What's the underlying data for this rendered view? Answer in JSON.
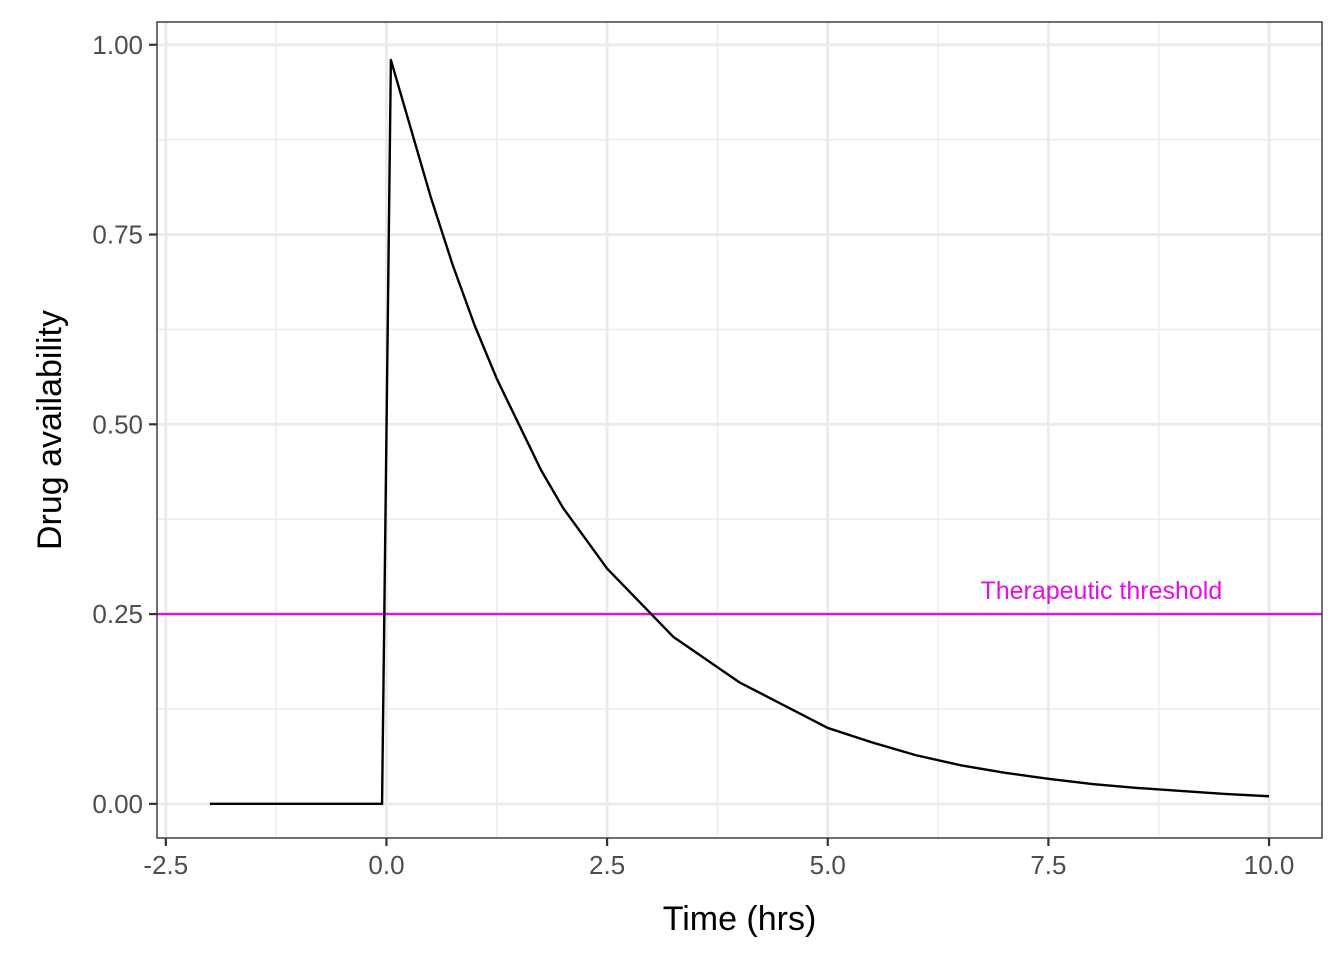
{
  "chart_data": {
    "type": "line",
    "title": "",
    "xlabel": "Time (hrs)",
    "ylabel": "Drug availability",
    "xlim": [
      -2.6,
      10.6
    ],
    "ylim": [
      -0.045,
      1.03
    ],
    "x_ticks": [
      -2.5,
      0.0,
      2.5,
      5.0,
      7.5,
      10.0
    ],
    "x_tick_labels": [
      "-2.5",
      "0.0",
      "2.5",
      "5.0",
      "7.5",
      "10.0"
    ],
    "y_ticks": [
      0.0,
      0.25,
      0.5,
      0.75,
      1.0
    ],
    "y_tick_labels": [
      "0.00",
      "0.25",
      "0.50",
      "0.75",
      "1.00"
    ],
    "grid": true,
    "series": [
      {
        "color": "#000000",
        "x": [
          -2.0,
          -0.05,
          0.05,
          0.25,
          0.5,
          0.75,
          1.0,
          1.25,
          1.5,
          1.75,
          2.0,
          2.25,
          2.5,
          2.75,
          3.0,
          3.25,
          3.5,
          3.75,
          4.0,
          4.5,
          5.0,
          5.5,
          6.0,
          6.5,
          7.0,
          7.5,
          8.0,
          8.5,
          9.0,
          9.5,
          10.0
        ],
        "y": [
          0.0,
          0.0,
          0.98,
          0.9,
          0.8,
          0.71,
          0.63,
          0.56,
          0.5,
          0.44,
          0.39,
          0.35,
          0.31,
          0.28,
          0.25,
          0.22,
          0.2,
          0.18,
          0.16,
          0.13,
          0.1,
          0.081,
          0.064,
          0.051,
          0.041,
          0.033,
          0.026,
          0.021,
          0.017,
          0.013,
          0.01
        ]
      }
    ],
    "hlines": [
      {
        "y": 0.25,
        "color": "#e60de6",
        "label": "Therapeutic threshold",
        "label_x": 8.1
      }
    ]
  }
}
